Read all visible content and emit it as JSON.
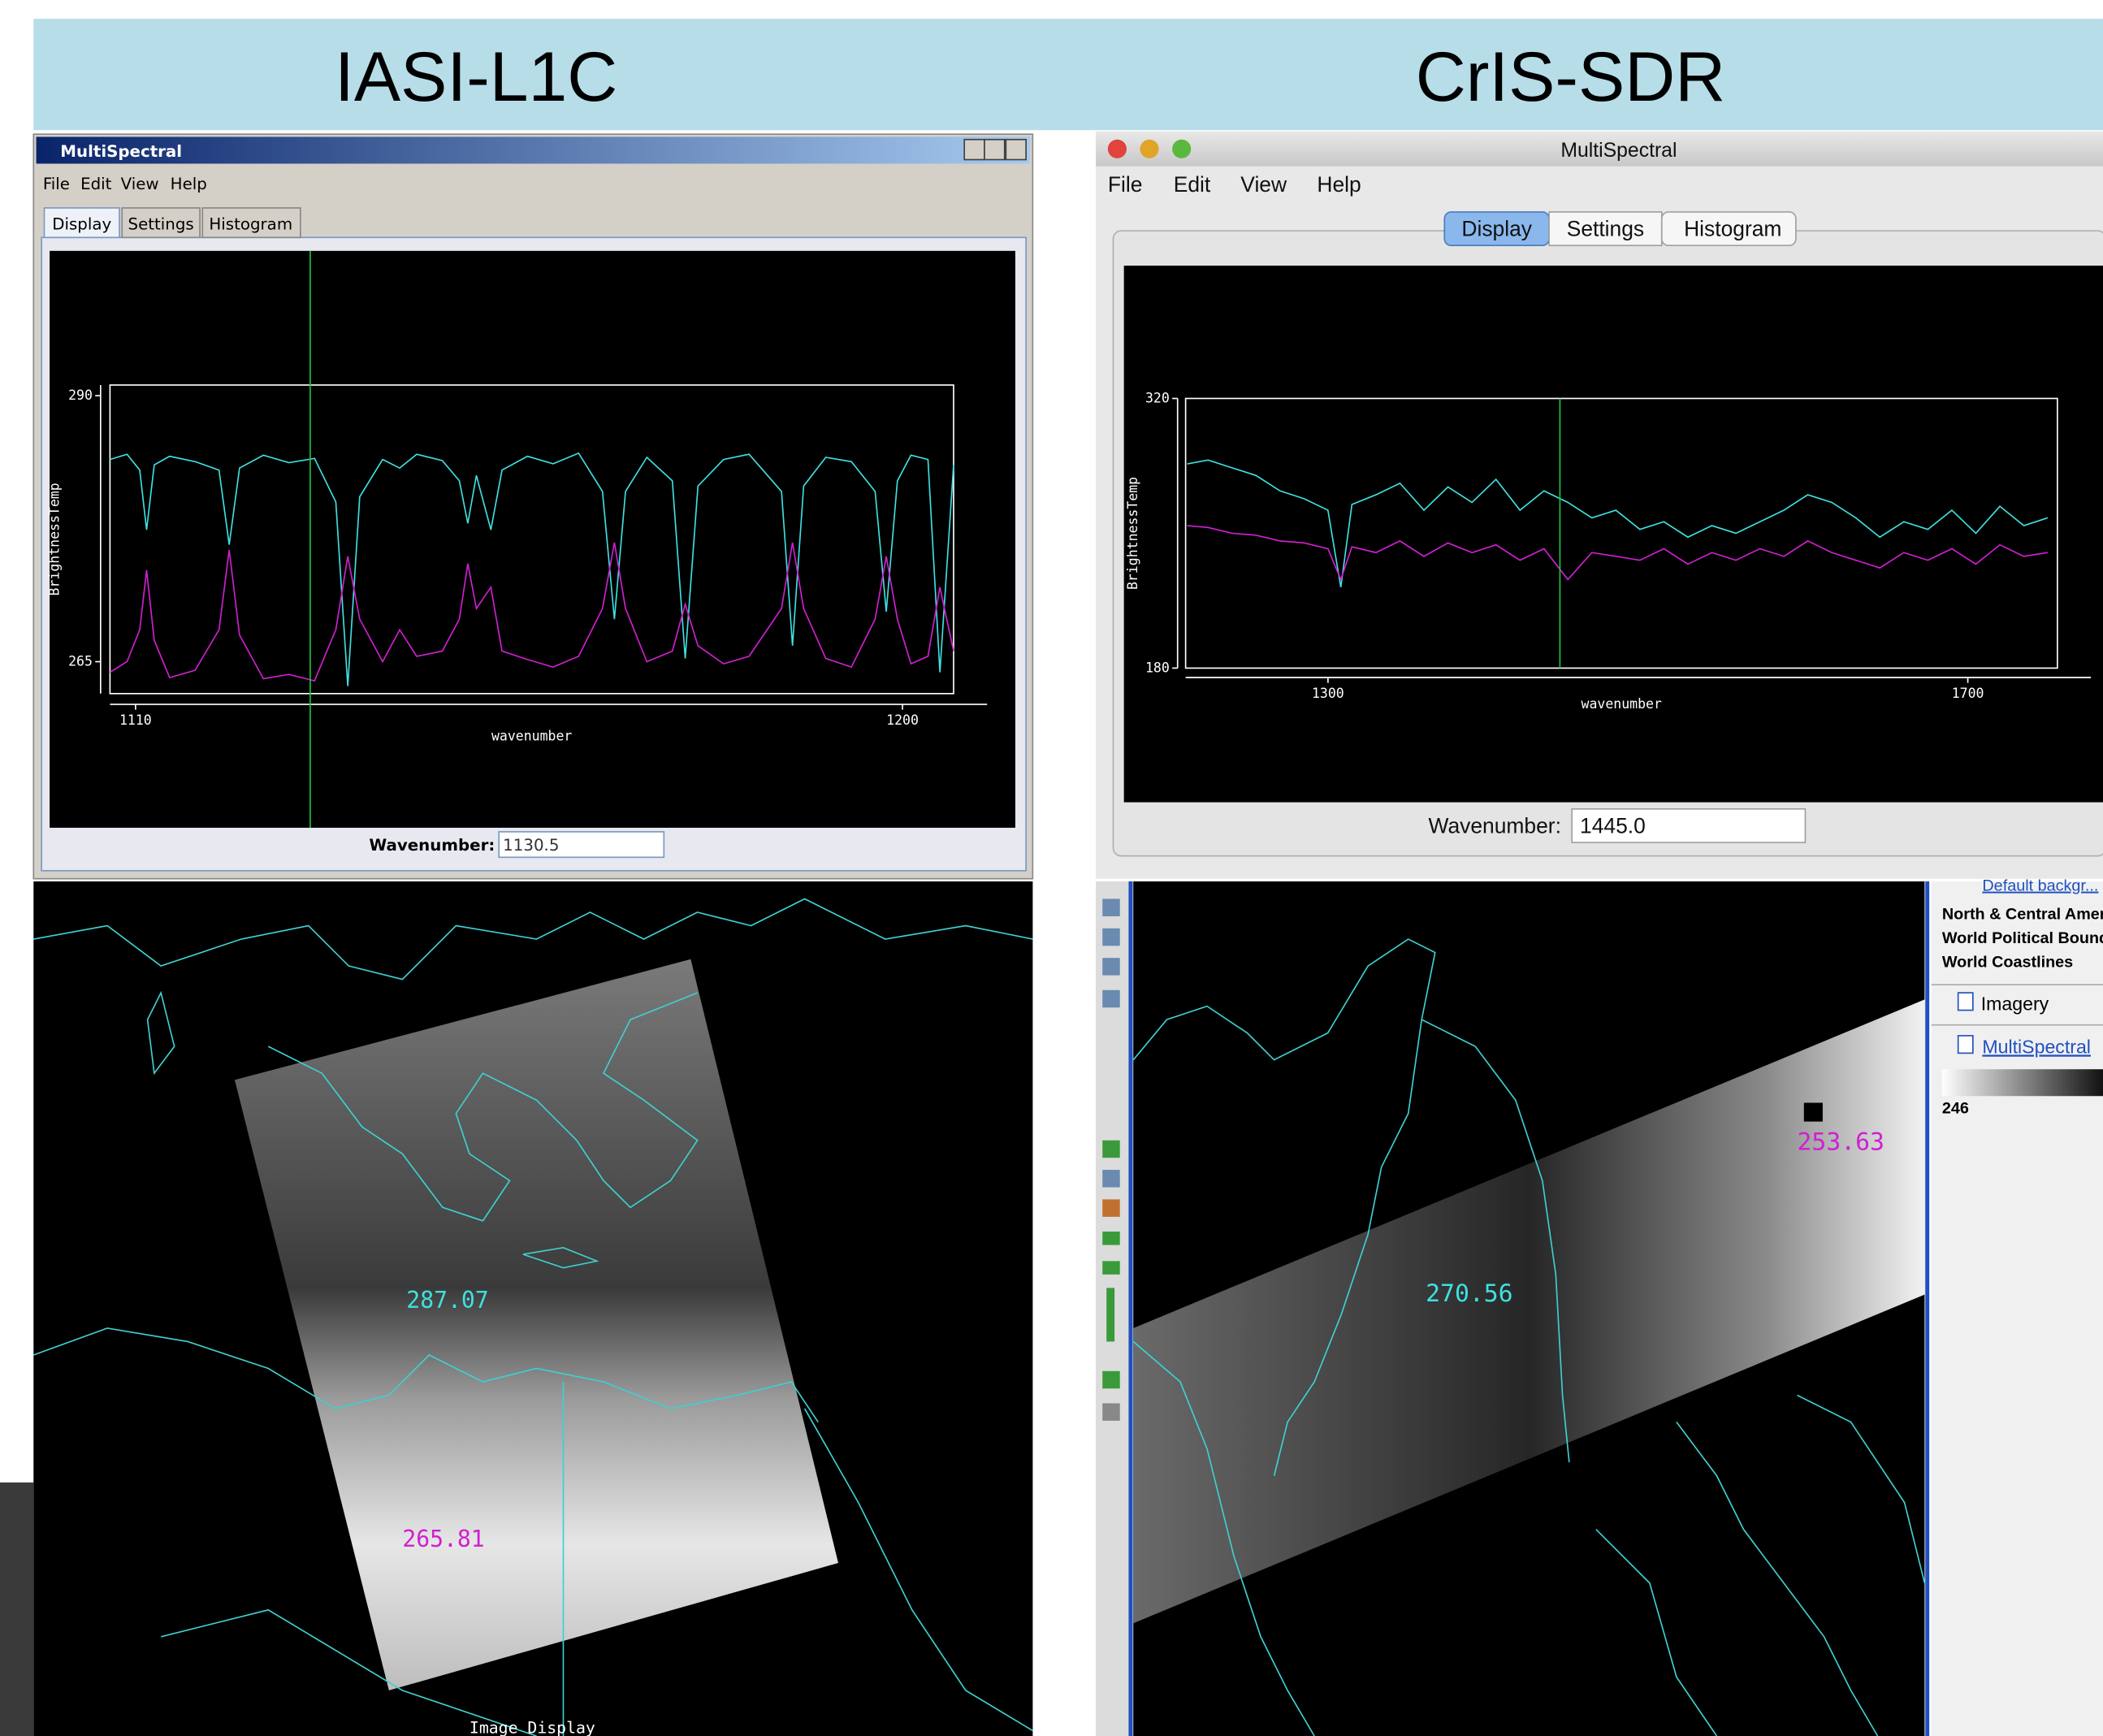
{
  "headers": [
    "IASI-L1C",
    "CrIS-SDR"
  ],
  "panels": [
    {
      "window_title": "MultiSpectral",
      "menu": [
        "File",
        "Edit",
        "View",
        "Help"
      ],
      "tabs": [
        "Display",
        "Settings",
        "Histogram"
      ],
      "wavenumber_label": "Wavenumber:",
      "map_labels": [
        {
          "text": "287.07",
          "color": "#40e0e0"
        },
        {
          "text": "265.81",
          "color": "#d020d0"
        }
      ],
      "status": "Image Display"
    },
    {
      "window_title": "MultiSpectral",
      "menu": [
        "File",
        "Edit",
        "View",
        "Help"
      ],
      "tabs": [
        "Display",
        "Settings",
        "Histogram"
      ],
      "wavenumber_label": "Wavenumber:",
      "map_labels": [
        {
          "text": "270.56",
          "color": "#40e0e0"
        },
        {
          "text": "253.63",
          "color": "#d020d0"
        }
      ],
      "layers": [
        "Default backgr...",
        "North & Central America",
        "World Political Boundaries",
        "World Coastlines",
        "Imagery",
        "MultiSpectral",
        "246"
      ]
    }
  ],
  "chart_data": [
    {
      "type": "line",
      "x_label": "wavenumber",
      "y_label": "BrightnessTemp",
      "xlim": [
        1107,
        1206
      ],
      "ylim": [
        262,
        291
      ],
      "xticks": [
        1110,
        1200
      ],
      "yticks": [
        265,
        290
      ],
      "cursor": {
        "value": 1130.5,
        "label": "1130.5"
      },
      "x": [
        1107,
        1109,
        1110.5,
        1111.3,
        1112.2,
        1114,
        1117,
        1119.8,
        1121,
        1122.2,
        1125,
        1128,
        1131,
        1133.5,
        1134.9,
        1136.3,
        1139,
        1141,
        1143,
        1146,
        1148,
        1149,
        1150,
        1151.7,
        1153,
        1156,
        1159,
        1162,
        1164.8,
        1166.2,
        1167.5,
        1170,
        1173,
        1174.5,
        1176,
        1179,
        1182,
        1185.8,
        1187.1,
        1188.4,
        1191,
        1194,
        1196.8,
        1198.1,
        1199.4,
        1201,
        1203,
        1204.4,
        1206
      ],
      "series": [
        {
          "color": "#3fe0e0",
          "values": [
            284,
            284.5,
            283,
            277.4,
            283.5,
            284.3,
            283.8,
            283,
            276,
            283.2,
            284.4,
            283.7,
            284.1,
            280,
            262.7,
            280.5,
            284,
            283.2,
            284.5,
            283.9,
            282,
            278,
            282.5,
            277.4,
            283,
            284.3,
            283.6,
            284.6,
            281,
            269,
            281,
            284.2,
            282,
            265.3,
            281.5,
            284,
            284.5,
            281,
            266.5,
            281.5,
            284.2,
            283.8,
            281,
            269.7,
            282,
            284.4,
            284,
            264,
            283.5
          ]
        },
        {
          "color": "#d020d0",
          "values": [
            264,
            265,
            268,
            273.6,
            267,
            263.5,
            264.2,
            268,
            275.5,
            267.5,
            263.4,
            263.8,
            263.2,
            268,
            274.9,
            269,
            265,
            268,
            265.5,
            266,
            269,
            274.2,
            270,
            272,
            266,
            265.2,
            264.5,
            265.5,
            270,
            276.2,
            270,
            265,
            266,
            270.4,
            266.5,
            264.8,
            265.5,
            270,
            276.2,
            270,
            265.3,
            264.5,
            269,
            274.9,
            269,
            264.8,
            265.5,
            272,
            266
          ]
        }
      ]
    },
    {
      "type": "line",
      "x_label": "wavenumber",
      "y_label": "BrightnessTemp",
      "xlim": [
        1211,
        1756
      ],
      "ylim": [
        180,
        320
      ],
      "xticks": [
        1300,
        1700
      ],
      "yticks": [
        180,
        320
      ],
      "cursor": {
        "value": 1445,
        "label": "1445.0"
      },
      "x": [
        1212,
        1225,
        1240,
        1255,
        1270,
        1285,
        1300,
        1308,
        1315,
        1330,
        1345,
        1360,
        1375,
        1390,
        1405,
        1420,
        1435,
        1450,
        1465,
        1480,
        1495,
        1510,
        1525,
        1540,
        1555,
        1570,
        1585,
        1600,
        1615,
        1630,
        1645,
        1660,
        1675,
        1690,
        1705,
        1720,
        1735,
        1750
      ],
      "series": [
        {
          "color": "#3fe0e0",
          "values": [
            286,
            288,
            284,
            280,
            272,
            268,
            262,
            222,
            265,
            270,
            276,
            262,
            274,
            266,
            278,
            262,
            272,
            266,
            258,
            262,
            252,
            256,
            248,
            254,
            250,
            256,
            262,
            270,
            266,
            258,
            248,
            256,
            252,
            262,
            250,
            264,
            254,
            258
          ]
        },
        {
          "color": "#d020d0",
          "values": [
            254,
            253,
            250,
            249,
            246,
            245,
            242,
            226,
            243,
            240,
            246,
            238,
            245,
            240,
            244,
            236,
            242,
            226,
            240,
            238,
            236,
            242,
            234,
            240,
            236,
            242,
            238,
            246,
            240,
            236,
            232,
            240,
            236,
            242,
            234,
            244,
            238,
            240
          ]
        }
      ]
    }
  ]
}
